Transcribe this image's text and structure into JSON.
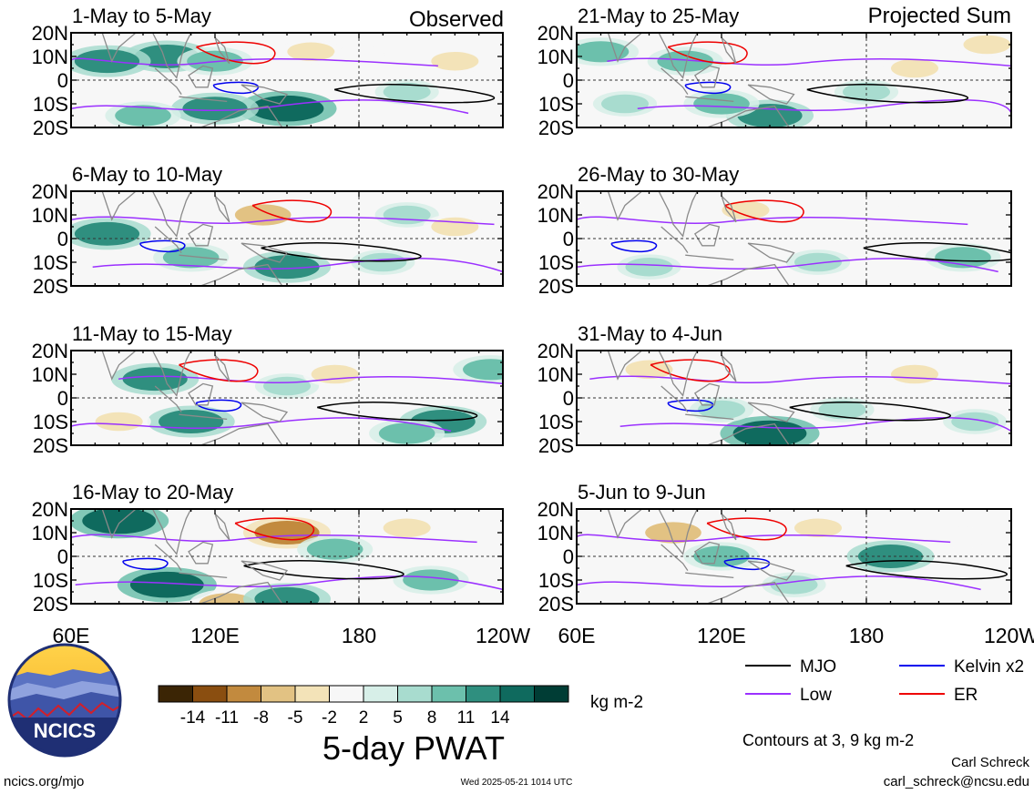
{
  "chart_data": {
    "type": "heatmap",
    "title": "5-day PWAT",
    "units": "kg m-2",
    "left_header": "Observed",
    "right_header": "Projected Sum",
    "x_ticks": [
      "60E",
      "120E",
      "180",
      "120W"
    ],
    "y_ticks": [
      "20N",
      "10N",
      "0",
      "10S",
      "20S"
    ],
    "lon_range_deg_east": [
      60,
      240
    ],
    "lat_range": [
      -20,
      20
    ],
    "panels": [
      {
        "label": "1-May to 5-May",
        "column": "observed",
        "cells": [
          {
            "lon": 100,
            "lat": 10,
            "value": 11
          },
          {
            "lon": 120,
            "lat": 8,
            "value": 8
          },
          {
            "lon": 75,
            "lat": 8,
            "value": 11
          },
          {
            "lon": 150,
            "lat": -12,
            "value": 14
          },
          {
            "lon": 120,
            "lat": -12,
            "value": 11
          },
          {
            "lon": 160,
            "lat": 12,
            "value": -5
          },
          {
            "lon": 200,
            "lat": -5,
            "value": 5
          },
          {
            "lon": 220,
            "lat": 8,
            "value": -5
          },
          {
            "lon": 90,
            "lat": -15,
            "value": 8
          },
          {
            "lon": 180,
            "lat": 10,
            "value": -2
          }
        ]
      },
      {
        "label": "6-May to 10-May",
        "column": "observed",
        "cells": [
          {
            "lon": 75,
            "lat": 2,
            "value": 11
          },
          {
            "lon": 140,
            "lat": 10,
            "value": -8
          },
          {
            "lon": 110,
            "lat": -8,
            "value": 8
          },
          {
            "lon": 150,
            "lat": -12,
            "value": 11
          },
          {
            "lon": 200,
            "lat": 10,
            "value": 5
          },
          {
            "lon": 190,
            "lat": -10,
            "value": 5
          },
          {
            "lon": 220,
            "lat": 5,
            "value": -5
          },
          {
            "lon": 90,
            "lat": 12,
            "value": -2
          }
        ]
      },
      {
        "label": "11-May to 15-May",
        "column": "observed",
        "cells": [
          {
            "lon": 95,
            "lat": 8,
            "value": 11
          },
          {
            "lon": 110,
            "lat": -10,
            "value": 11
          },
          {
            "lon": 150,
            "lat": 5,
            "value": 5
          },
          {
            "lon": 170,
            "lat": 10,
            "value": -5
          },
          {
            "lon": 215,
            "lat": -10,
            "value": 11
          },
          {
            "lon": 200,
            "lat": -15,
            "value": 8
          },
          {
            "lon": 235,
            "lat": 12,
            "value": 8
          },
          {
            "lon": 80,
            "lat": -10,
            "value": -5
          }
        ]
      },
      {
        "label": "16-May to 20-May",
        "column": "observed",
        "cells": [
          {
            "lon": 80,
            "lat": 15,
            "value": 14
          },
          {
            "lon": 100,
            "lat": -12,
            "value": 14
          },
          {
            "lon": 150,
            "lat": 10,
            "value": -11
          },
          {
            "lon": 125,
            "lat": -20,
            "value": -8
          },
          {
            "lon": 170,
            "lat": 3,
            "value": 8
          },
          {
            "lon": 210,
            "lat": -10,
            "value": 8
          },
          {
            "lon": 150,
            "lat": -18,
            "value": 11
          },
          {
            "lon": 200,
            "lat": 12,
            "value": -5
          }
        ]
      },
      {
        "label": "21-May to 25-May",
        "column": "projected",
        "cells": [
          {
            "lon": 70,
            "lat": 12,
            "value": 8
          },
          {
            "lon": 105,
            "lat": 8,
            "value": 8
          },
          {
            "lon": 140,
            "lat": -15,
            "value": 11
          },
          {
            "lon": 120,
            "lat": -10,
            "value": 8
          },
          {
            "lon": 200,
            "lat": 5,
            "value": -5
          },
          {
            "lon": 230,
            "lat": 15,
            "value": -5
          },
          {
            "lon": 180,
            "lat": -5,
            "value": 5
          },
          {
            "lon": 80,
            "lat": -10,
            "value": 5
          }
        ]
      },
      {
        "label": "26-May to 30-May",
        "column": "projected",
        "cells": [
          {
            "lon": 90,
            "lat": -12,
            "value": 5
          },
          {
            "lon": 130,
            "lat": 12,
            "value": -5
          },
          {
            "lon": 220,
            "lat": -8,
            "value": 8
          },
          {
            "lon": 160,
            "lat": -10,
            "value": 5
          },
          {
            "lon": 70,
            "lat": 10,
            "value": -2
          },
          {
            "lon": 200,
            "lat": 10,
            "value": -2
          }
        ]
      },
      {
        "label": "31-May to 4-Jun",
        "column": "projected",
        "cells": [
          {
            "lon": 140,
            "lat": -15,
            "value": 14
          },
          {
            "lon": 120,
            "lat": -5,
            "value": 5
          },
          {
            "lon": 200,
            "lat": 10,
            "value": -5
          },
          {
            "lon": 90,
            "lat": 12,
            "value": -5
          },
          {
            "lon": 170,
            "lat": -5,
            "value": 5
          },
          {
            "lon": 225,
            "lat": -10,
            "value": 5
          }
        ]
      },
      {
        "label": "5-Jun to 9-Jun",
        "column": "projected",
        "cells": [
          {
            "lon": 190,
            "lat": 0,
            "value": 11
          },
          {
            "lon": 120,
            "lat": 0,
            "value": 8
          },
          {
            "lon": 100,
            "lat": 10,
            "value": -8
          },
          {
            "lon": 160,
            "lat": 12,
            "value": -5
          },
          {
            "lon": 150,
            "lat": -12,
            "value": 5
          },
          {
            "lon": 220,
            "lat": 8,
            "value": -2
          }
        ]
      }
    ],
    "colorbar": {
      "labels": [
        "-14",
        "-11",
        "-8",
        "-5",
        "-2",
        "2",
        "5",
        "8",
        "11",
        "14"
      ],
      "colors": [
        "#3b2505",
        "#8a4e10",
        "#c28a3e",
        "#e2c283",
        "#f3e3b8",
        "#f7f7f7",
        "#d7efe8",
        "#a8dccf",
        "#6cc0ac",
        "#2f8f7f",
        "#0f6a5e",
        "#003d35"
      ]
    },
    "contour_legend": [
      {
        "name": "MJO",
        "color": "#000000"
      },
      {
        "name": "Kelvin x2",
        "color": "#0000ee"
      },
      {
        "name": "Low",
        "color": "#9b30ff"
      },
      {
        "name": "ER",
        "color": "#ee0000"
      }
    ],
    "contour_note": "Contours at 3, 9 kg m-2"
  },
  "footer": {
    "logo_text": "NCICS",
    "url": "ncics.org/mjo",
    "timestamp": "Wed 2025-05-21 1014 UTC",
    "author": "Carl Schreck",
    "email": "carl_schreck@ncsu.edu"
  }
}
